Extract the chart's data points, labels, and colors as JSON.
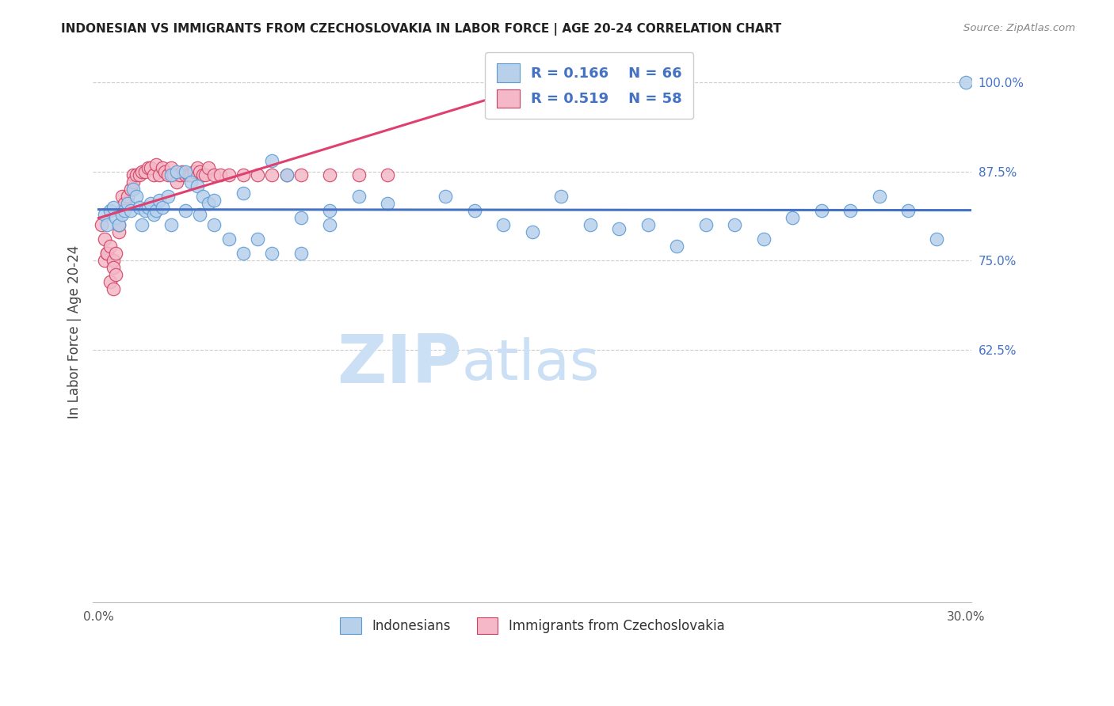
{
  "title": "INDONESIAN VS IMMIGRANTS FROM CZECHOSLOVAKIA IN LABOR FORCE | AGE 20-24 CORRELATION CHART",
  "source": "Source: ZipAtlas.com",
  "ylabel": "In Labor Force | Age 20-24",
  "xlim": [
    -0.002,
    0.302
  ],
  "ylim": [
    0.27,
    1.03
  ],
  "xtick_positions": [
    0.0,
    0.05,
    0.1,
    0.15,
    0.2,
    0.25,
    0.3
  ],
  "xtick_labels": [
    "0.0%",
    "",
    "",
    "",
    "",
    "",
    "30.0%"
  ],
  "yticks_right": [
    1.0,
    0.875,
    0.75,
    0.625
  ],
  "ytick_labels_right": [
    "100.0%",
    "87.5%",
    "75.0%",
    "62.5%"
  ],
  "blue_color": "#b8d0ea",
  "blue_edge_color": "#5b9bd5",
  "blue_line_color": "#4472c4",
  "pink_color": "#f4b8c8",
  "pink_edge_color": "#d04060",
  "pink_line_color": "#e04070",
  "label_blue": "Indonesians",
  "label_pink": "Immigrants from Czechoslovakia",
  "legend_r_color": "#4472c4",
  "watermark": "ZIPatlas",
  "watermark_color": "#cce0f5",
  "blue_x": [
    0.002,
    0.003,
    0.004,
    0.005,
    0.006,
    0.007,
    0.008,
    0.009,
    0.01,
    0.011,
    0.012,
    0.013,
    0.014,
    0.015,
    0.016,
    0.017,
    0.018,
    0.019,
    0.02,
    0.021,
    0.022,
    0.024,
    0.025,
    0.027,
    0.03,
    0.032,
    0.034,
    0.036,
    0.038,
    0.04,
    0.05,
    0.06,
    0.065,
    0.07,
    0.08,
    0.09,
    0.1,
    0.12,
    0.13,
    0.14,
    0.15,
    0.16,
    0.17,
    0.18,
    0.19,
    0.2,
    0.21,
    0.22,
    0.23,
    0.24,
    0.25,
    0.26,
    0.27,
    0.28,
    0.29,
    0.3,
    0.025,
    0.03,
    0.035,
    0.04,
    0.045,
    0.05,
    0.055,
    0.06,
    0.07,
    0.08
  ],
  "blue_y": [
    0.815,
    0.8,
    0.82,
    0.825,
    0.81,
    0.8,
    0.815,
    0.82,
    0.83,
    0.82,
    0.85,
    0.84,
    0.825,
    0.8,
    0.82,
    0.825,
    0.83,
    0.815,
    0.82,
    0.835,
    0.825,
    0.84,
    0.87,
    0.875,
    0.875,
    0.86,
    0.855,
    0.84,
    0.83,
    0.835,
    0.845,
    0.89,
    0.87,
    0.81,
    0.82,
    0.84,
    0.83,
    0.84,
    0.82,
    0.8,
    0.79,
    0.84,
    0.8,
    0.795,
    0.8,
    0.77,
    0.8,
    0.8,
    0.78,
    0.81,
    0.82,
    0.82,
    0.84,
    0.82,
    0.78,
    1.0,
    0.8,
    0.82,
    0.815,
    0.8,
    0.78,
    0.76,
    0.78,
    0.76,
    0.76,
    0.8
  ],
  "pink_x": [
    0.001,
    0.002,
    0.002,
    0.003,
    0.003,
    0.004,
    0.004,
    0.005,
    0.005,
    0.005,
    0.006,
    0.006,
    0.007,
    0.007,
    0.008,
    0.008,
    0.009,
    0.01,
    0.011,
    0.012,
    0.012,
    0.013,
    0.014,
    0.015,
    0.016,
    0.017,
    0.018,
    0.019,
    0.02,
    0.021,
    0.022,
    0.023,
    0.024,
    0.025,
    0.026,
    0.027,
    0.028,
    0.029,
    0.03,
    0.031,
    0.032,
    0.033,
    0.034,
    0.035,
    0.036,
    0.037,
    0.038,
    0.04,
    0.042,
    0.045,
    0.05,
    0.055,
    0.06,
    0.065,
    0.07,
    0.08,
    0.09,
    0.1
  ],
  "pink_y": [
    0.8,
    0.78,
    0.75,
    0.76,
    0.76,
    0.77,
    0.72,
    0.75,
    0.74,
    0.71,
    0.76,
    0.73,
    0.79,
    0.8,
    0.82,
    0.84,
    0.83,
    0.84,
    0.85,
    0.87,
    0.86,
    0.87,
    0.87,
    0.875,
    0.875,
    0.88,
    0.88,
    0.87,
    0.885,
    0.87,
    0.88,
    0.875,
    0.87,
    0.88,
    0.87,
    0.86,
    0.87,
    0.875,
    0.87,
    0.87,
    0.87,
    0.875,
    0.88,
    0.875,
    0.87,
    0.87,
    0.88,
    0.87,
    0.87,
    0.87,
    0.87,
    0.87,
    0.87,
    0.87,
    0.87,
    0.87,
    0.87,
    0.87
  ]
}
